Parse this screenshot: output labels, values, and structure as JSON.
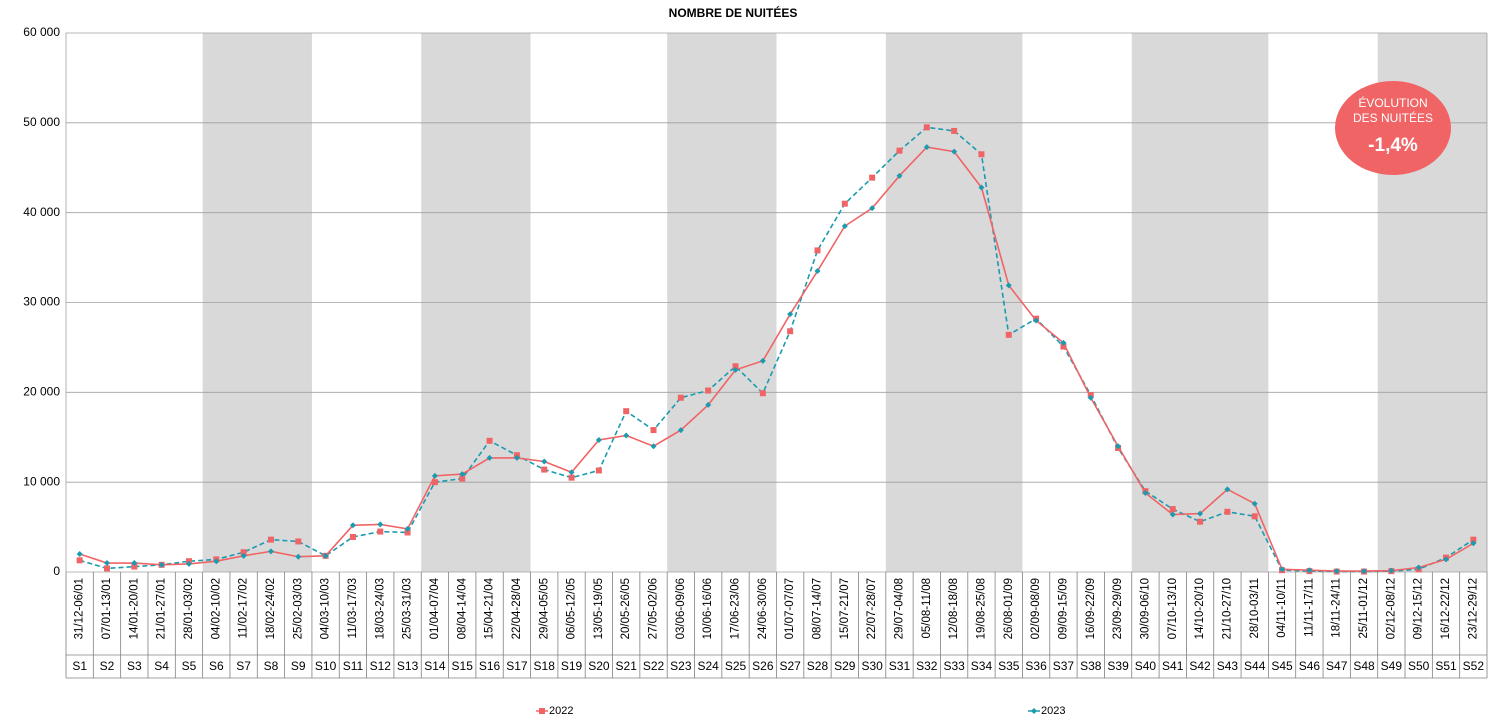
{
  "chart_data": {
    "type": "line",
    "title": "NOMBRE DE NUITÉES",
    "categories": [
      "31/12-06/01",
      "07/01-13/01",
      "14/01-20/01",
      "21/01-27/01",
      "28/01-03/02",
      "04/02-10/02",
      "11/02-17/02",
      "18/02-24/02",
      "25/02-03/03",
      "04/03-10/03",
      "11/03-17/03",
      "18/03-24/03",
      "25/03-31/03",
      "01/04-07/04",
      "08/04-14/04",
      "15/04-21/04",
      "22/04-28/04",
      "29/04-05/05",
      "06/05-12/05",
      "13/05-19/05",
      "20/05-26/05",
      "27/05-02/06",
      "03/06-09/06",
      "10/06-16/06",
      "17/06-23/06",
      "24/06-30/06",
      "01/07-07/07",
      "08/07-14/07",
      "15/07-21/07",
      "22/07-28/07",
      "29/07-04/08",
      "05/08-11/08",
      "12/08-18/08",
      "19/08-25/08",
      "26/08-01/09",
      "02/09-08/09",
      "09/09-15/09",
      "16/09-22/09",
      "23/09-29/09",
      "30/09-06/10",
      "07/10-13/10",
      "14/10-20/10",
      "21/10-27/10",
      "28/10-03/11",
      "04/11-10/11",
      "11/11-17/11",
      "18/11-24/11",
      "25/11-01/12",
      "02/12-08/12",
      "09/12-15/12",
      "16/12-22/12",
      "23/12-29/12"
    ],
    "week_labels": [
      "S1",
      "S2",
      "S3",
      "S4",
      "S5",
      "S6",
      "S7",
      "S8",
      "S9",
      "S10",
      "S11",
      "S12",
      "S13",
      "S14",
      "S15",
      "S16",
      "S17",
      "S18",
      "S19",
      "S20",
      "S21",
      "S22",
      "S23",
      "S24",
      "S25",
      "S26",
      "S27",
      "S28",
      "S29",
      "S30",
      "S31",
      "S32",
      "S33",
      "S34",
      "S35",
      "S36",
      "S37",
      "S38",
      "S39",
      "S40",
      "S41",
      "S42",
      "S43",
      "S44",
      "S45",
      "S46",
      "S47",
      "S48",
      "S49",
      "S50",
      "S51",
      "S52"
    ],
    "series": [
      {
        "name": "2022",
        "color": "#f06466",
        "line_color": "#1a9bb0",
        "line_dash": true,
        "marker": "square",
        "values": [
          1300,
          400,
          600,
          800,
          1200,
          1400,
          2200,
          3600,
          3400,
          1800,
          3900,
          4500,
          4400,
          10000,
          10400,
          14600,
          13000,
          11400,
          10500,
          11300,
          17900,
          15800,
          19400,
          20200,
          22900,
          19900,
          26800,
          35800,
          41000,
          43900,
          46900,
          49500,
          49100,
          46500,
          26400,
          28200,
          25100,
          19700,
          13800,
          9000,
          7000,
          5600,
          6700,
          6200,
          200,
          100,
          50,
          50,
          100,
          300,
          1600,
          3600
        ]
      },
      {
        "name": "2023",
        "color": "#1a9bb0",
        "line_color": "#f06466",
        "line_dash": false,
        "marker": "diamond",
        "values": [
          2000,
          1000,
          1000,
          800,
          900,
          1200,
          1800,
          2300,
          1700,
          1800,
          5200,
          5300,
          4800,
          10700,
          10900,
          12700,
          12700,
          12300,
          11100,
          14700,
          15200,
          14000,
          15800,
          18600,
          22500,
          23500,
          28700,
          33500,
          38500,
          40500,
          44100,
          47300,
          46800,
          42800,
          31900,
          28000,
          25500,
          19400,
          14000,
          8800,
          6400,
          6500,
          9200,
          7600,
          300,
          200,
          100,
          100,
          150,
          500,
          1400,
          3200
        ]
      }
    ],
    "ylim": [
      0,
      60000
    ],
    "yticks": [
      {
        "value": 0,
        "label": "0"
      },
      {
        "value": 10000,
        "label": "10 000"
      },
      {
        "value": 20000,
        "label": "20 000"
      },
      {
        "value": 30000,
        "label": "30 000"
      },
      {
        "value": 40000,
        "label": "40 000"
      },
      {
        "value": 50000,
        "label": "50 000"
      },
      {
        "value": 60000,
        "label": "60 000"
      }
    ],
    "grid": true,
    "annotation": {
      "title": "ÉVOLUTION DES NUITÉES",
      "value": "-1,4%",
      "color": "#f06466"
    }
  }
}
